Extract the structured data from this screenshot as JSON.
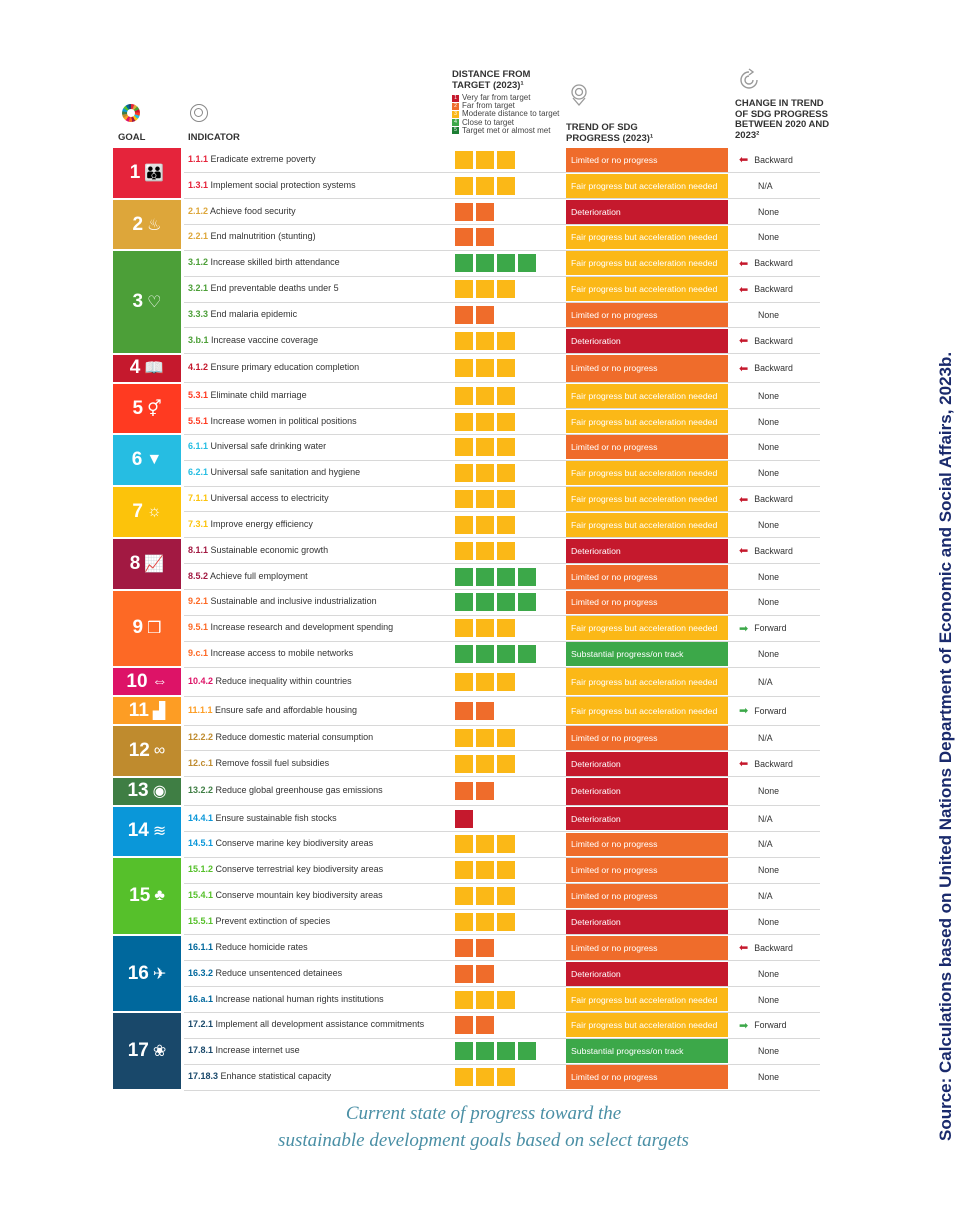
{
  "header": {
    "goal": "GOAL",
    "indicator": "INDICATOR",
    "distance": "DISTANCE FROM TARGET (2023)¹",
    "trend": "TREND OF SDG PROGRESS (2023)¹",
    "change": "CHANGE IN TREND OF SDG PROGRESS BETWEEN 2020 AND 2023²"
  },
  "legend": [
    {
      "num": "1",
      "label": "Very far from target",
      "color": "#c5192d"
    },
    {
      "num": "2",
      "label": "Far from target",
      "color": "#ef6c2b"
    },
    {
      "num": "3",
      "label": "Moderate distance to target",
      "color": "#fbb817"
    },
    {
      "num": "4",
      "label": "Close to target",
      "color": "#3ca849"
    },
    {
      "num": "5",
      "label": "Target met or almost met",
      "color": "#1e7e34"
    }
  ],
  "colors": {
    "distance": {
      "1": "#c5192d",
      "2": "#ef6c2b",
      "3": "#fbb817",
      "4": "#3ca849"
    },
    "trend": {
      "Limited or no progress": "#ef6c2b",
      "Fair progress but acceleration needed": "#fbb817",
      "Deterioration": "#c5192d",
      "Substantial progress/on track": "#3ca849"
    },
    "arrow": {
      "Backward": "#c5192d",
      "Forward": "#3ca849"
    }
  },
  "goals": [
    {
      "num": "1",
      "icon": "family-icon",
      "glyph": "👪",
      "color": "#e5243b"
    },
    {
      "num": "2",
      "icon": "food-bowl-icon",
      "glyph": "♨",
      "color": "#dda63a"
    },
    {
      "num": "3",
      "icon": "heartbeat-icon",
      "glyph": "♡",
      "color": "#4c9f38"
    },
    {
      "num": "4",
      "icon": "book-icon",
      "glyph": "📖",
      "color": "#c5192d"
    },
    {
      "num": "5",
      "icon": "gender-equality-icon",
      "glyph": "⚥",
      "color": "#ff3a21"
    },
    {
      "num": "6",
      "icon": "water-drop-icon",
      "glyph": "▼",
      "color": "#26bde2"
    },
    {
      "num": "7",
      "icon": "sun-icon",
      "glyph": "☼",
      "color": "#fcc30b"
    },
    {
      "num": "8",
      "icon": "growth-chart-icon",
      "glyph": "📈",
      "color": "#a21942"
    },
    {
      "num": "9",
      "icon": "cubes-icon",
      "glyph": "❒",
      "color": "#fd6925"
    },
    {
      "num": "10",
      "icon": "equality-arrows-icon",
      "glyph": "⇔",
      "color": "#dd1367"
    },
    {
      "num": "11",
      "icon": "city-icon",
      "glyph": "▟",
      "color": "#fd9d24"
    },
    {
      "num": "12",
      "icon": "infinity-icon",
      "glyph": "∞",
      "color": "#bf8b2e"
    },
    {
      "num": "13",
      "icon": "eye-globe-icon",
      "glyph": "◉",
      "color": "#3f7e44"
    },
    {
      "num": "14",
      "icon": "fish-waves-icon",
      "glyph": "≋",
      "color": "#0a97d9"
    },
    {
      "num": "15",
      "icon": "tree-icon",
      "glyph": "♣",
      "color": "#56c02b"
    },
    {
      "num": "16",
      "icon": "dove-gavel-icon",
      "glyph": "✈",
      "color": "#00689d"
    },
    {
      "num": "17",
      "icon": "partnership-flower-icon",
      "glyph": "❀",
      "color": "#19486a"
    }
  ],
  "chart_data": {
    "type": "table",
    "columns": [
      "GOAL",
      "INDICATOR",
      "DISTANCE FROM TARGET (2023)¹",
      "TREND OF SDG PROGRESS (2023)¹",
      "CHANGE IN TREND OF SDG PROGRESS BETWEEN 2020 AND 2023²"
    ],
    "rows": [
      {
        "goal": "1",
        "code": "1.1.1",
        "name": "Eradicate extreme poverty",
        "distance": 3,
        "trend": "Limited or no progress",
        "change": "Backward"
      },
      {
        "goal": "1",
        "code": "1.3.1",
        "name": "Implement social protection systems",
        "distance": 3,
        "trend": "Fair progress but acceleration needed",
        "change": "N/A"
      },
      {
        "goal": "2",
        "code": "2.1.2",
        "name": "Achieve food security",
        "distance": 2,
        "trend": "Deterioration",
        "change": "None"
      },
      {
        "goal": "2",
        "code": "2.2.1",
        "name": "End malnutrition (stunting)",
        "distance": 2,
        "trend": "Fair progress but acceleration needed",
        "change": "None"
      },
      {
        "goal": "3",
        "code": "3.1.2",
        "name": "Increase skilled birth attendance",
        "distance": 4,
        "trend": "Fair progress but acceleration needed",
        "change": "Backward"
      },
      {
        "goal": "3",
        "code": "3.2.1",
        "name": "End preventable deaths under 5",
        "distance": 3,
        "trend": "Fair progress but acceleration needed",
        "change": "Backward"
      },
      {
        "goal": "3",
        "code": "3.3.3",
        "name": "End malaria epidemic",
        "distance": 2,
        "trend": "Limited or no progress",
        "change": "None"
      },
      {
        "goal": "3",
        "code": "3.b.1",
        "name": "Increase vaccine coverage",
        "distance": 3,
        "trend": "Deterioration",
        "change": "Backward"
      },
      {
        "goal": "4",
        "code": "4.1.2",
        "name": "Ensure primary education completion",
        "distance": 3,
        "trend": "Limited or no progress",
        "change": "Backward"
      },
      {
        "goal": "5",
        "code": "5.3.1",
        "name": "Eliminate child marriage",
        "distance": 3,
        "trend": "Fair progress but acceleration needed",
        "change": "None"
      },
      {
        "goal": "5",
        "code": "5.5.1",
        "name": " Increase women in political positions",
        "distance": 3,
        "trend": "Fair progress but acceleration needed",
        "change": "None"
      },
      {
        "goal": "6",
        "code": "6.1.1",
        "name": "Universal safe drinking water",
        "distance": 3,
        "trend": "Limited or no progress",
        "change": "None"
      },
      {
        "goal": "6",
        "code": "6.2.1",
        "name": "Universal safe sanitation and hygiene",
        "distance": 3,
        "trend": "Fair progress but acceleration needed",
        "change": "None"
      },
      {
        "goal": "7",
        "code": "7.1.1",
        "name": "Universal access to electricity",
        "distance": 3,
        "trend": "Fair progress but acceleration needed",
        "change": "Backward"
      },
      {
        "goal": "7",
        "code": "7.3.1",
        "name": "Improve energy efficiency",
        "distance": 3,
        "trend": "Fair progress but acceleration needed",
        "change": "None"
      },
      {
        "goal": "8",
        "code": "8.1.1",
        "name": "Sustainable economic growth",
        "distance": 3,
        "trend": "Deterioration",
        "change": "Backward"
      },
      {
        "goal": "8",
        "code": "8.5.2",
        "name": "Achieve full employment",
        "distance": 4,
        "trend": "Limited or no progress",
        "change": "None"
      },
      {
        "goal": "9",
        "code": "9.2.1",
        "name": "Sustainable and inclusive industrialization",
        "distance": 4,
        "trend": "Limited or no progress",
        "change": "None"
      },
      {
        "goal": "9",
        "code": "9.5.1",
        "name": "Increase research and development spending",
        "distance": 3,
        "trend": "Fair progress but acceleration needed",
        "change": "Forward"
      },
      {
        "goal": "9",
        "code": "9.c.1",
        "name": "Increase access to mobile networks",
        "distance": 4,
        "trend": "Substantial progress/on track",
        "change": "None"
      },
      {
        "goal": "10",
        "code": "10.4.2",
        "name": "Reduce inequality within countries",
        "distance": 3,
        "trend": "Fair progress but acceleration needed",
        "change": "N/A"
      },
      {
        "goal": "11",
        "code": "11.1.1",
        "name": "Ensure safe and affordable housing",
        "distance": 2,
        "trend": "Fair progress but acceleration needed",
        "change": "Forward"
      },
      {
        "goal": "12",
        "code": "12.2.2",
        "name": "Reduce domestic material consumption",
        "distance": 3,
        "trend": "Limited or no progress",
        "change": "N/A"
      },
      {
        "goal": "12",
        "code": "12.c.1",
        "name": "Remove fossil fuel subsidies",
        "distance": 3,
        "trend": "Deterioration",
        "change": "Backward"
      },
      {
        "goal": "13",
        "code": "13.2.2",
        "name": "Reduce global greenhouse gas emissions",
        "distance": 2,
        "trend": "Deterioration",
        "change": "None"
      },
      {
        "goal": "14",
        "code": "14.4.1",
        "name": "Ensure sustainable fish stocks",
        "distance": 1,
        "trend": "Deterioration",
        "change": "N/A"
      },
      {
        "goal": "14",
        "code": "14.5.1",
        "name": "Conserve marine key biodiversity areas",
        "distance": 3,
        "trend": "Limited or no progress",
        "change": "N/A"
      },
      {
        "goal": "15",
        "code": "15.1.2",
        "name": "Conserve terrestrial key biodiversity areas",
        "distance": 3,
        "trend": "Limited or no progress",
        "change": "None"
      },
      {
        "goal": "15",
        "code": "15.4.1",
        "name": "Conserve mountain key biodiversity areas",
        "distance": 3,
        "trend": "Limited or no progress",
        "change": "N/A"
      },
      {
        "goal": "15",
        "code": "15.5.1",
        "name": "Prevent extinction of species",
        "distance": 3,
        "trend": "Deterioration",
        "change": "None"
      },
      {
        "goal": "16",
        "code": "16.1.1",
        "name": "Reduce homicide rates",
        "distance": 2,
        "trend": "Limited or no progress",
        "change": "Backward"
      },
      {
        "goal": "16",
        "code": "16.3.2",
        "name": "Reduce unsentenced detainees",
        "distance": 2,
        "trend": "Deterioration",
        "change": "None"
      },
      {
        "goal": "16",
        "code": "16.a.1",
        "name": "Increase national human rights institutions",
        "distance": 3,
        "trend": "Fair progress but acceleration needed",
        "change": "None"
      },
      {
        "goal": "17",
        "code": "17.2.1",
        "name": "Implement all development assistance commitments",
        "distance": 2,
        "trend": "Fair progress but acceleration needed",
        "change": "Forward"
      },
      {
        "goal": "17",
        "code": "17.8.1",
        "name": "Increase internet use",
        "distance": 4,
        "trend": "Substantial progress/on track",
        "change": "None"
      },
      {
        "goal": "17",
        "code": "17.18.3",
        "name": "Enhance statistical capacity",
        "distance": 3,
        "trend": "Limited or no progress",
        "change": "None"
      }
    ]
  },
  "caption": {
    "line1": "Current state of progress toward the",
    "line2": "sustainable development goals based on select targets"
  },
  "source": "Source: Calculations based on United Nations Department of Economic and Social Affairs, 2023b."
}
